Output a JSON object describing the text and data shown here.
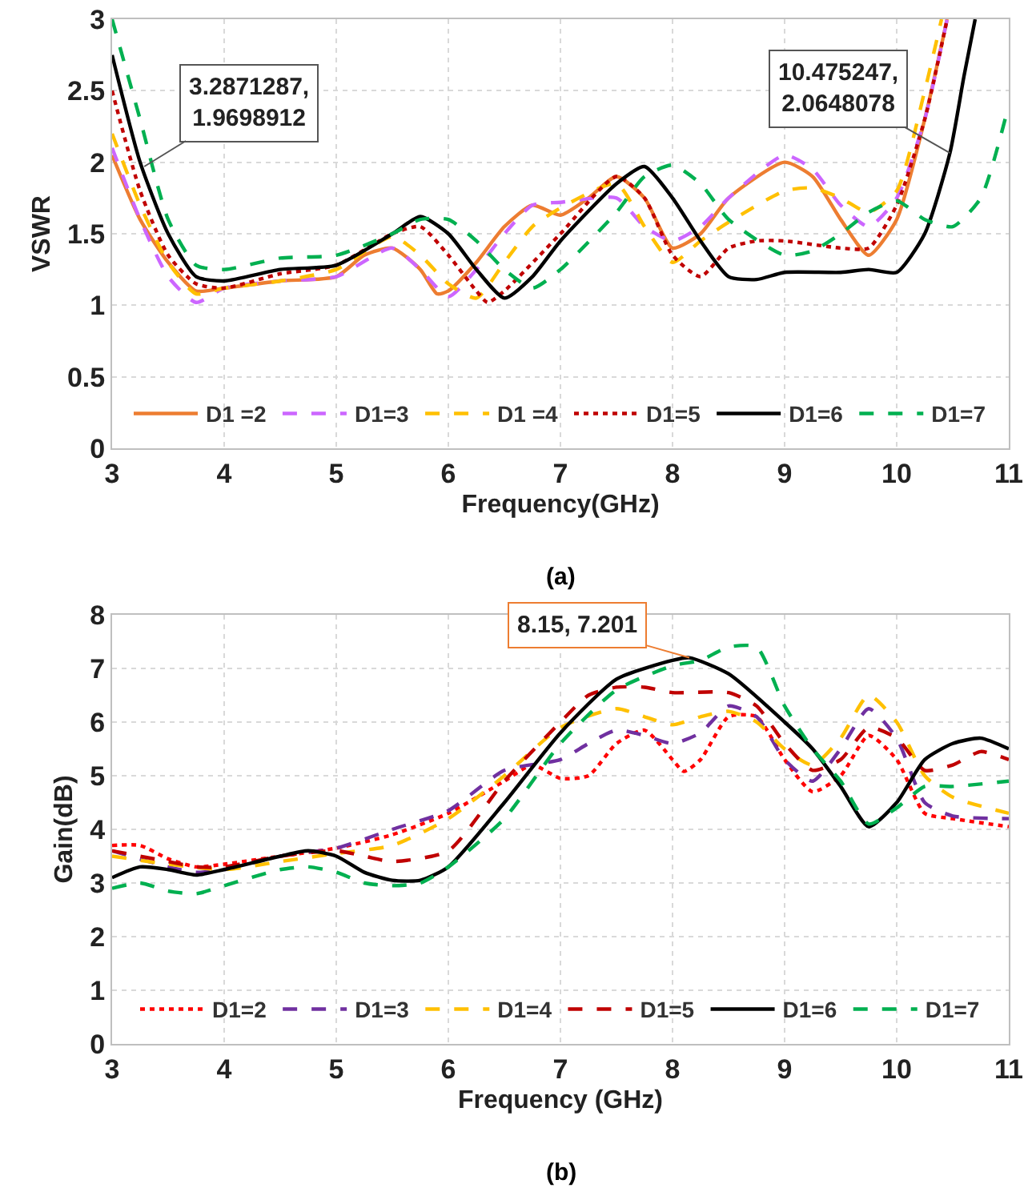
{
  "chart_data": [
    {
      "type": "line",
      "xlabel": "Frequency(GHz)",
      "ylabel": "VSWR",
      "xlim": [
        3,
        11
      ],
      "ylim": [
        0,
        3
      ],
      "xticks": [
        3,
        4,
        5,
        6,
        7,
        8,
        9,
        10,
        11
      ],
      "yticks": [
        0,
        0.5,
        1,
        1.5,
        2,
        2.5,
        3
      ],
      "grid": true,
      "legend": "bottom",
      "marker": "none",
      "annotations": [
        {
          "text": "3.2871287,\n1.9698912",
          "x": 3.287,
          "y": 1.97
        },
        {
          "text": "10.475247,\n2.0648078",
          "x": 10.475,
          "y": 2.065
        },
        "(a)"
      ],
      "series": [
        {
          "name": "D1 =2",
          "color": "#ed7d31",
          "line_style": "solid",
          "x": [
            3,
            3.25,
            3.5,
            3.75,
            4,
            4.5,
            5,
            5.25,
            5.5,
            5.75,
            5.9,
            6,
            6.25,
            6.5,
            6.75,
            7,
            7.25,
            7.5,
            7.75,
            8,
            8.25,
            8.5,
            9,
            9.25,
            9.5,
            9.75,
            10,
            10.25,
            10.45
          ],
          "values": [
            2.05,
            1.6,
            1.3,
            1.1,
            1.12,
            1.17,
            1.2,
            1.35,
            1.4,
            1.25,
            1.08,
            1.1,
            1.3,
            1.55,
            1.7,
            1.63,
            1.75,
            1.9,
            1.75,
            1.4,
            1.5,
            1.75,
            2.0,
            1.9,
            1.6,
            1.35,
            1.6,
            2.3,
            3.0
          ]
        },
        {
          "name": "D1=3",
          "color": "#cc66ff",
          "line_style": "dashed",
          "x": [
            3,
            3.25,
            3.5,
            3.75,
            4,
            4.5,
            5,
            5.5,
            5.75,
            6,
            6.25,
            6.5,
            6.75,
            7,
            7.5,
            7.75,
            8,
            8.25,
            8.5,
            9,
            9.25,
            9.5,
            9.75,
            10,
            10.25,
            10.45
          ],
          "values": [
            2.1,
            1.6,
            1.2,
            1.02,
            1.12,
            1.17,
            1.2,
            1.4,
            1.25,
            1.06,
            1.25,
            1.5,
            1.7,
            1.72,
            1.75,
            1.55,
            1.45,
            1.55,
            1.75,
            2.05,
            1.95,
            1.7,
            1.55,
            1.75,
            2.3,
            3.0
          ]
        },
        {
          "name": "D1 =4",
          "color": "#ffc000",
          "line_style": "dashed",
          "x": [
            3,
            3.25,
            3.5,
            3.75,
            4,
            4.5,
            5,
            5.5,
            5.75,
            6,
            6.25,
            6.5,
            6.75,
            7,
            7.5,
            7.75,
            8,
            8.25,
            8.5,
            9,
            9.25,
            9.5,
            9.75,
            10,
            10.25,
            10.4
          ],
          "values": [
            2.2,
            1.7,
            1.3,
            1.08,
            1.12,
            1.17,
            1.25,
            1.48,
            1.35,
            1.15,
            1.05,
            1.3,
            1.55,
            1.68,
            1.85,
            1.55,
            1.3,
            1.45,
            1.58,
            1.8,
            1.82,
            1.75,
            1.65,
            1.8,
            2.5,
            3.0
          ]
        },
        {
          "name": "D1=5",
          "color": "#c00000",
          "line_style": "dotted",
          "x": [
            3,
            3.25,
            3.5,
            3.75,
            4,
            4.5,
            5,
            5.5,
            5.75,
            6,
            6.25,
            6.35,
            6.5,
            7,
            7.5,
            7.75,
            8,
            8.25,
            8.5,
            8.75,
            9,
            9.5,
            9.75,
            10,
            10.25,
            10.45
          ],
          "values": [
            2.5,
            1.8,
            1.35,
            1.15,
            1.12,
            1.22,
            1.28,
            1.5,
            1.55,
            1.35,
            1.1,
            1.02,
            1.1,
            1.5,
            1.9,
            1.75,
            1.35,
            1.2,
            1.4,
            1.45,
            1.45,
            1.4,
            1.4,
            1.7,
            2.3,
            3.0
          ]
        },
        {
          "name": "D1=6",
          "color": "#000000",
          "line_style": "solid",
          "x": [
            3,
            3.25,
            3.5,
            3.75,
            4,
            4.5,
            5,
            5.5,
            5.75,
            6,
            6.25,
            6.5,
            6.75,
            7,
            7.5,
            7.75,
            8,
            8.25,
            8.5,
            8.75,
            9,
            9.5,
            9.75,
            10,
            10.25,
            10.475,
            10.6,
            10.7
          ],
          "values": [
            2.75,
            2.0,
            1.5,
            1.2,
            1.17,
            1.25,
            1.28,
            1.5,
            1.62,
            1.5,
            1.25,
            1.05,
            1.2,
            1.45,
            1.85,
            1.97,
            1.75,
            1.45,
            1.2,
            1.18,
            1.23,
            1.23,
            1.25,
            1.23,
            1.5,
            2.065,
            2.6,
            3.0
          ]
        },
        {
          "name": "D1=7",
          "color": "#00b050",
          "line_style": "dashed",
          "x": [
            3,
            3.25,
            3.5,
            3.75,
            4,
            4.5,
            5,
            5.5,
            5.75,
            6,
            6.25,
            6.5,
            6.75,
            7,
            7.5,
            7.75,
            8,
            8.25,
            8.5,
            9,
            9.25,
            9.5,
            9.75,
            10,
            10.25,
            10.5,
            10.75,
            11
          ],
          "values": [
            3.0,
            2.3,
            1.6,
            1.28,
            1.25,
            1.33,
            1.35,
            1.5,
            1.6,
            1.6,
            1.45,
            1.25,
            1.12,
            1.25,
            1.65,
            1.9,
            1.98,
            1.85,
            1.6,
            1.35,
            1.38,
            1.5,
            1.65,
            1.73,
            1.6,
            1.55,
            1.75,
            2.4
          ]
        }
      ]
    },
    {
      "type": "line",
      "xlabel": "Frequency (GHz)",
      "ylabel": "Gain(dB)",
      "xlim": [
        3,
        11
      ],
      "ylim": [
        0,
        8
      ],
      "xticks": [
        3,
        4,
        5,
        6,
        7,
        8,
        9,
        10,
        11
      ],
      "yticks": [
        0,
        1,
        2,
        3,
        4,
        5,
        6,
        7,
        8
      ],
      "grid": true,
      "legend": "bottom",
      "marker": "none",
      "annotations": [
        {
          "text": "8.15, 7.201",
          "x": 8.15,
          "y": 7.201
        },
        "(b)"
      ],
      "series": [
        {
          "name": "D1=2",
          "color": "#ff0000",
          "line_style": "dotted",
          "x": [
            3,
            3.25,
            3.5,
            3.75,
            4,
            4.5,
            5,
            5.5,
            6,
            6.5,
            6.75,
            7,
            7.25,
            7.5,
            7.75,
            8,
            8.1,
            8.25,
            8.5,
            8.75,
            9,
            9.25,
            9.5,
            9.75,
            10,
            10.25,
            10.5,
            11
          ],
          "values": [
            3.7,
            3.7,
            3.45,
            3.3,
            3.35,
            3.5,
            3.65,
            3.9,
            4.3,
            4.9,
            5.2,
            4.95,
            5.0,
            5.6,
            5.85,
            5.3,
            5.08,
            5.3,
            6.1,
            6.1,
            5.3,
            4.7,
            5.0,
            5.75,
            5.3,
            4.3,
            4.2,
            4.05
          ]
        },
        {
          "name": "D1=3",
          "color": "#7030a0",
          "line_style": "dashed",
          "x": [
            3,
            3.5,
            3.75,
            4,
            4.5,
            5,
            5.5,
            6,
            6.5,
            7,
            7.25,
            7.5,
            7.75,
            8,
            8.25,
            8.5,
            8.75,
            9,
            9.25,
            9.5,
            9.75,
            10,
            10.25,
            10.5,
            11
          ],
          "values": [
            3.6,
            3.3,
            3.2,
            3.25,
            3.5,
            3.65,
            4.0,
            4.35,
            5.1,
            5.3,
            5.6,
            5.85,
            5.75,
            5.6,
            5.8,
            6.3,
            6.1,
            5.3,
            4.9,
            5.5,
            6.25,
            5.7,
            4.5,
            4.25,
            4.2
          ]
        },
        {
          "name": "D1=4",
          "color": "#ffc000",
          "line_style": "dashed",
          "x": [
            3,
            3.5,
            4,
            4.5,
            5,
            5.5,
            6,
            6.5,
            7,
            7.5,
            7.75,
            8,
            8.25,
            8.5,
            8.75,
            9,
            9.25,
            9.5,
            9.75,
            10,
            10.25,
            10.5,
            11
          ],
          "values": [
            3.5,
            3.35,
            3.25,
            3.4,
            3.55,
            3.7,
            4.2,
            5.0,
            5.9,
            6.25,
            6.1,
            5.95,
            6.1,
            6.2,
            6.0,
            5.5,
            5.2,
            5.7,
            6.5,
            6.0,
            5.0,
            4.6,
            4.3
          ]
        },
        {
          "name": "D1=5",
          "color": "#c00000",
          "line_style": "dashed",
          "x": [
            3,
            3.5,
            3.75,
            4,
            4.5,
            5,
            5.25,
            5.5,
            6,
            6.5,
            7,
            7.25,
            7.5,
            7.75,
            8,
            8.5,
            8.75,
            9,
            9.25,
            9.5,
            9.75,
            10,
            10.25,
            10.5,
            10.75,
            11
          ],
          "values": [
            3.6,
            3.4,
            3.3,
            3.3,
            3.5,
            3.6,
            3.5,
            3.4,
            3.6,
            4.9,
            6.0,
            6.5,
            6.65,
            6.65,
            6.55,
            6.55,
            6.3,
            5.6,
            5.1,
            5.3,
            5.9,
            5.7,
            5.1,
            5.2,
            5.45,
            5.3
          ]
        },
        {
          "name": "D1=6",
          "color": "#000000",
          "line_style": "solid",
          "x": [
            3,
            3.25,
            3.5,
            3.75,
            4,
            4.5,
            4.75,
            5,
            5.25,
            5.5,
            5.75,
            6,
            6.5,
            7,
            7.5,
            8,
            8.15,
            8.5,
            9,
            9.25,
            9.5,
            9.75,
            10,
            10.25,
            10.5,
            10.75,
            11
          ],
          "values": [
            3.1,
            3.3,
            3.25,
            3.15,
            3.25,
            3.5,
            3.6,
            3.5,
            3.2,
            3.05,
            3.05,
            3.3,
            4.5,
            5.8,
            6.8,
            7.15,
            7.2,
            6.9,
            6.0,
            5.5,
            4.8,
            4.05,
            4.5,
            5.3,
            5.6,
            5.7,
            5.5
          ]
        },
        {
          "name": "D1=7",
          "color": "#00b050",
          "line_style": "dashed",
          "x": [
            3,
            3.25,
            3.5,
            3.75,
            4,
            4.5,
            4.75,
            5,
            5.25,
            5.5,
            5.75,
            6,
            6.5,
            7,
            7.5,
            8,
            8.25,
            8.5,
            8.75,
            9,
            9.25,
            9.5,
            9.75,
            10,
            10.25,
            10.5,
            11
          ],
          "values": [
            2.9,
            3.0,
            2.85,
            2.8,
            2.95,
            3.25,
            3.3,
            3.2,
            3.0,
            2.95,
            3.0,
            3.3,
            4.2,
            5.6,
            6.6,
            7.05,
            7.15,
            7.4,
            7.4,
            6.3,
            5.5,
            4.9,
            4.1,
            4.4,
            4.8,
            4.8,
            4.9
          ]
        }
      ]
    }
  ]
}
